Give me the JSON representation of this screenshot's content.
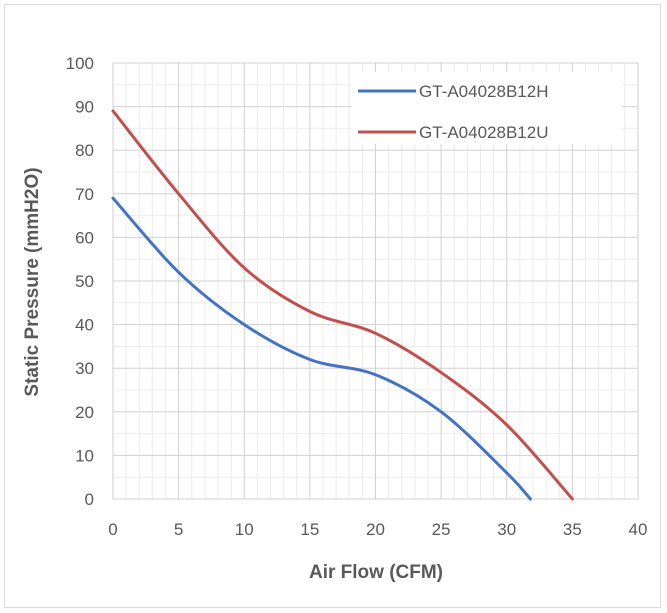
{
  "chart_data": {
    "type": "line",
    "title": "",
    "xlabel": "Air Flow (CFM)",
    "ylabel": "Static Pressure (mmH2O)",
    "xlim": [
      0,
      40
    ],
    "ylim": [
      0,
      100
    ],
    "x_ticks": [
      0,
      5,
      10,
      15,
      20,
      25,
      30,
      35,
      40
    ],
    "y_ticks": [
      0,
      10,
      20,
      30,
      40,
      50,
      60,
      70,
      80,
      90,
      100
    ],
    "grid": true,
    "minor_grid": true,
    "legend_position": "top-right",
    "series": [
      {
        "name": "GT-A04028B12H",
        "color": "#4472c4",
        "x": [
          0,
          5,
          10,
          15,
          20,
          25,
          30,
          31.8
        ],
        "y": [
          69,
          52,
          40,
          32,
          28.5,
          20,
          6,
          0
        ]
      },
      {
        "name": "GT-A04028B12U",
        "color": "#c0504d",
        "x": [
          0,
          5,
          10,
          15,
          20,
          25,
          30,
          35
        ],
        "y": [
          89,
          70,
          53,
          43,
          38,
          29,
          17,
          0
        ]
      }
    ]
  }
}
